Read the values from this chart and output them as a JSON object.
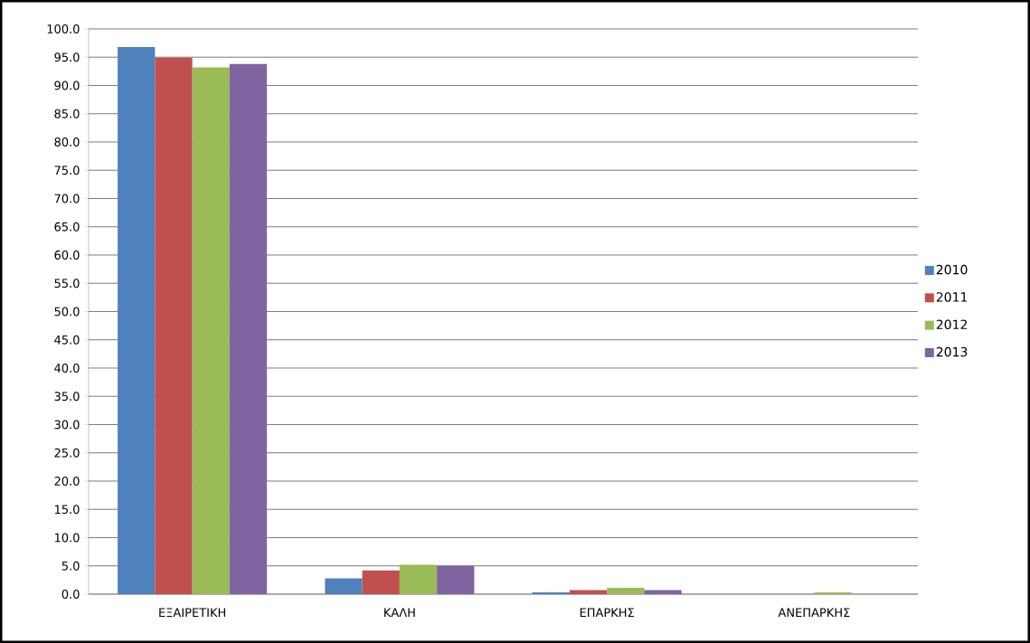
{
  "chart_data": {
    "type": "bar",
    "categories": [
      "ΕΞΑΙΡΕΤΙΚΗ",
      "ΚΑΛΗ",
      "ΕΠΑΡΚΗΣ",
      "ΑΝΕΠΑΡΚΗΣ"
    ],
    "series": [
      {
        "name": "2010",
        "color": "#4f81bd",
        "values": [
          96.8,
          2.8,
          0.3,
          0
        ]
      },
      {
        "name": "2011",
        "color": "#c0504d",
        "values": [
          94.9,
          4.2,
          0.7,
          0
        ]
      },
      {
        "name": "2012",
        "color": "#9bbb59",
        "values": [
          93.2,
          5.2,
          1.1,
          0.3
        ]
      },
      {
        "name": "2013",
        "color": "#8064a2",
        "values": [
          93.8,
          5.0,
          0.7,
          0
        ]
      }
    ],
    "ylim": [
      0,
      100
    ],
    "yticks": [
      {
        "value": 0,
        "label": "0.0"
      },
      {
        "value": 5,
        "label": "5.0"
      },
      {
        "value": 10,
        "label": "10.0"
      },
      {
        "value": 15,
        "label": "15.0"
      },
      {
        "value": 20,
        "label": "20.0"
      },
      {
        "value": 25,
        "label": "25.0"
      },
      {
        "value": 30,
        "label": "30.0"
      },
      {
        "value": 35,
        "label": "35.0"
      },
      {
        "value": 40,
        "label": "40.0"
      },
      {
        "value": 45,
        "label": "45.0"
      },
      {
        "value": 50,
        "label": "50.0"
      },
      {
        "value": 55,
        "label": "55.0"
      },
      {
        "value": 60,
        "label": "60.0"
      },
      {
        "value": 65,
        "label": "65.0"
      },
      {
        "value": 70,
        "label": "70.0"
      },
      {
        "value": 75,
        "label": "75.0"
      },
      {
        "value": 80,
        "label": "80.0"
      },
      {
        "value": 85,
        "label": "85.0"
      },
      {
        "value": 90,
        "label": "90.0"
      },
      {
        "value": 95,
        "label": "95.0"
      },
      {
        "value": 100,
        "label": "100.0"
      }
    ],
    "grid": "y",
    "legend": "right"
  }
}
